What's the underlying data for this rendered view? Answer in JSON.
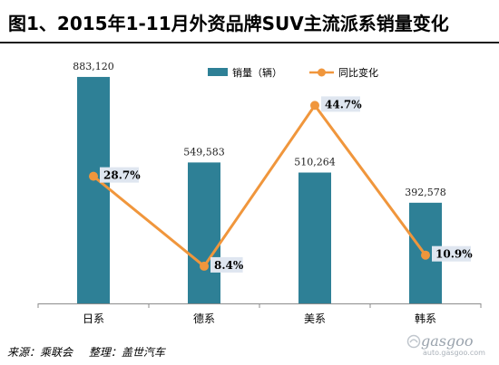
{
  "title": "图1、2015年1-11月外资品牌SUV主流派系销量变化",
  "source": {
    "origin": "来源：乘联会",
    "compiled": "整理：盖世汽车"
  },
  "watermark": {
    "logo_text": "gasgoo",
    "url": "auto.gasgoo.com",
    "icon": "gasgoo-logo-icon"
  },
  "colors": {
    "bar": "#2e8096",
    "line": "#f0963c",
    "label_bg": "#dfe6f0"
  },
  "chart_data": {
    "type": "bar",
    "categories": [
      "日系",
      "德系",
      "美系",
      "韩系"
    ],
    "series": [
      {
        "name": "销量（辆）",
        "type": "bar",
        "values": [
          883120,
          549583,
          510264,
          392578
        ],
        "labels": [
          "883,120",
          "549,583",
          "510,264",
          "392,578"
        ]
      },
      {
        "name": "同比变化",
        "type": "line",
        "axis": "secondary",
        "values": [
          28.7,
          8.4,
          44.7,
          10.9
        ],
        "labels": [
          "28.7%",
          "8.4%",
          "44.7%",
          "10.9%"
        ]
      }
    ],
    "ylim": [
      0,
      950000
    ],
    "y2lim": [
      0,
      55
    ],
    "grid": false,
    "legend": "top-center"
  }
}
